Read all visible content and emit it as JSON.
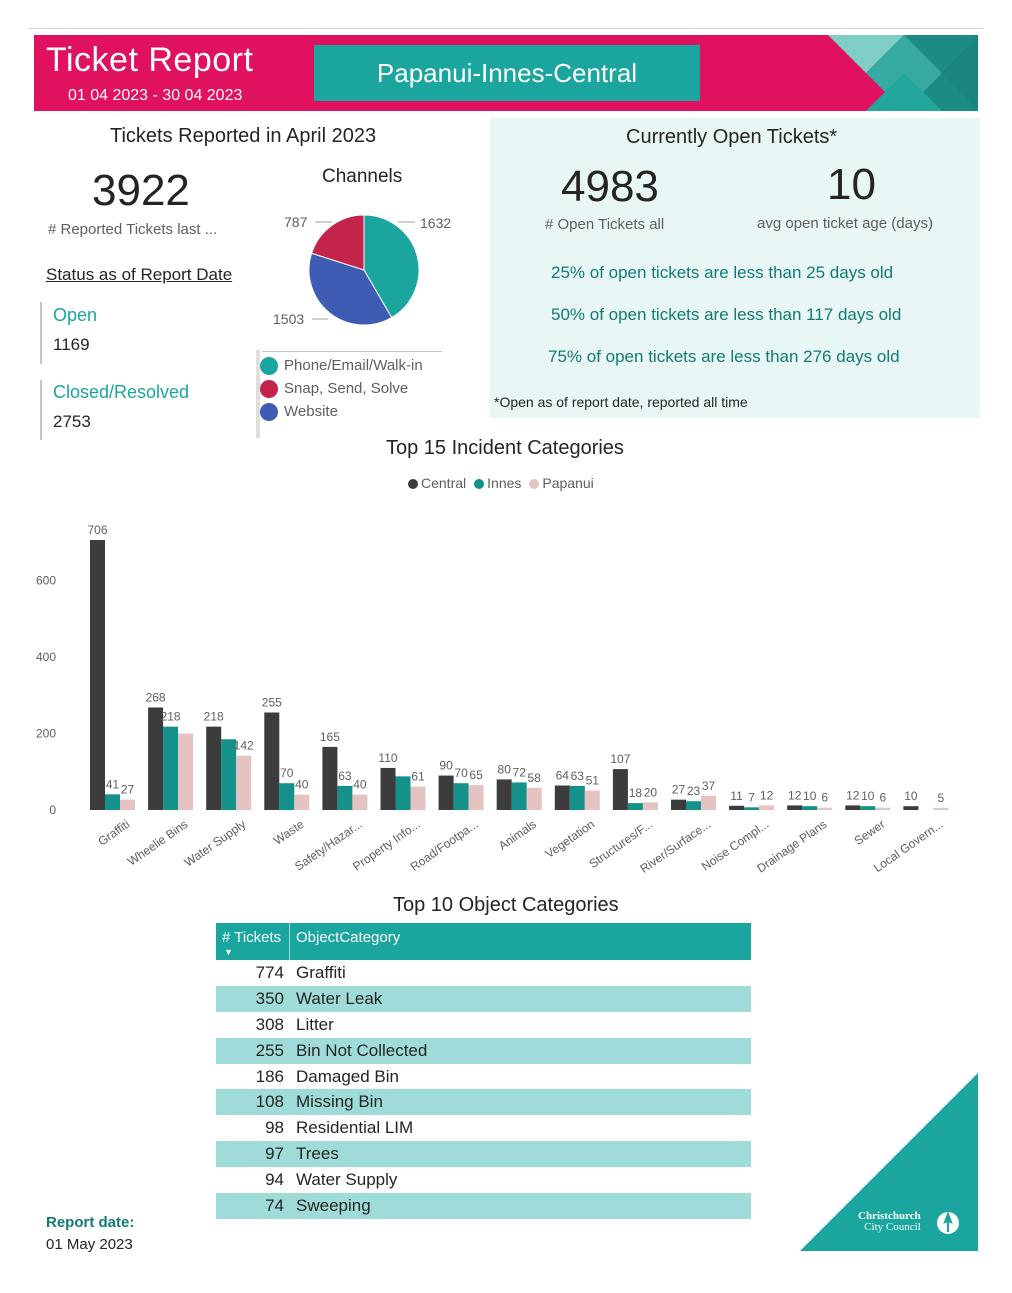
{
  "header": {
    "title": "Ticket Report",
    "dates": "01 04 2023 - 30 04 2023",
    "area": "Papanui-Innes-Central"
  },
  "reported": {
    "section_title": "Tickets Reported in April 2023",
    "count": "3922",
    "count_label": "# Reported Tickets last ...",
    "status_title": "Status as of Report Date",
    "open_label": "Open",
    "open_value": "1169",
    "closed_label": "Closed/Resolved",
    "closed_value": "2753"
  },
  "channels": {
    "title": "Channels",
    "labels": {
      "website": "1503",
      "snap": "787",
      "phone": "1632"
    },
    "legend": [
      "Phone/Email/Walk-in",
      "Snap, Send, Solve",
      "Website"
    ],
    "colors": [
      "#1aa59e",
      "#c4244b",
      "#3f5cb5"
    ]
  },
  "open_tickets": {
    "title": "Currently Open Tickets*",
    "count": "4983",
    "count_label": "# Open Tickets all",
    "avg_age": "10",
    "avg_age_label": "avg open ticket age (days)",
    "p25": "25% of open tickets are less than 25 days old",
    "p50": "50% of open tickets are less than 117 days old",
    "p75": "75% of open tickets are less than 276 days old",
    "footnote": "*Open as of report date, reported all time"
  },
  "incident_chart": {
    "title": "Top 15 Incident Categories",
    "legend": [
      "Central",
      "Innes",
      "Papanui"
    ]
  },
  "chart_data": {
    "type": "bar",
    "title": "Top 15 Incident Categories",
    "categories": [
      "Graffiti",
      "Wheelie Bins",
      "Water Supply",
      "Waste",
      "Safety/Hazar...",
      "Property Info...",
      "Road/Footpa...",
      "Animals",
      "Vegetation",
      "Structures/F...",
      "River/Surface...",
      "Noise Compl...",
      "Drainage Plans",
      "Sewer",
      "Local Govern..."
    ],
    "series": [
      {
        "name": "Central",
        "color": "#3c3c3c",
        "values": [
          706,
          268,
          218,
          255,
          165,
          110,
          90,
          80,
          64,
          107,
          27,
          11,
          12,
          12,
          10
        ]
      },
      {
        "name": "Innes",
        "color": "#13918a",
        "values": [
          41,
          218,
          185,
          70,
          63,
          88,
          70,
          72,
          63,
          18,
          23,
          7,
          10,
          10,
          0
        ]
      },
      {
        "name": "Papanui",
        "color": "#e5c3c3",
        "values": [
          27,
          200,
          142,
          40,
          40,
          61,
          65,
          58,
          51,
          20,
          37,
          12,
          6,
          6,
          5
        ]
      }
    ],
    "data_labels": [
      [
        "706",
        "268",
        "218",
        "255",
        "165",
        "110",
        "90",
        "80",
        "64",
        "107",
        "27",
        "11",
        "12",
        "12",
        "10"
      ],
      [
        "41",
        "218",
        "",
        "70",
        "63",
        "",
        "70",
        "72",
        "63",
        "18",
        "23",
        "7",
        "10",
        "10",
        ""
      ],
      [
        "27",
        "",
        "142",
        "40",
        "40",
        "61",
        "65",
        "58",
        "51",
        "20",
        "37",
        "12",
        "6",
        "6",
        "5"
      ]
    ],
    "yticks": [
      0,
      200,
      400,
      600
    ],
    "ylim": [
      0,
      720
    ],
    "legend_position": "top-center",
    "grid": false
  },
  "object_table": {
    "title": "Top 10 Object Categories",
    "col_tickets": "# Tickets",
    "col_category": "ObjectCategory",
    "rows": [
      {
        "tickets": "774",
        "category": "Graffiti"
      },
      {
        "tickets": "350",
        "category": "Water Leak"
      },
      {
        "tickets": "308",
        "category": "Litter"
      },
      {
        "tickets": "255",
        "category": "Bin Not Collected"
      },
      {
        "tickets": "186",
        "category": "Damaged Bin"
      },
      {
        "tickets": "108",
        "category": "Missing Bin"
      },
      {
        "tickets": "98",
        "category": "Residential LIM"
      },
      {
        "tickets": "97",
        "category": "Trees"
      },
      {
        "tickets": "94",
        "category": "Water Supply"
      },
      {
        "tickets": "74",
        "category": "Sweeping"
      }
    ]
  },
  "footer": {
    "report_date_label": "Report date:",
    "report_date": "01 May 2023",
    "logo_line1": "Christchurch",
    "logo_line2": "City Council"
  }
}
